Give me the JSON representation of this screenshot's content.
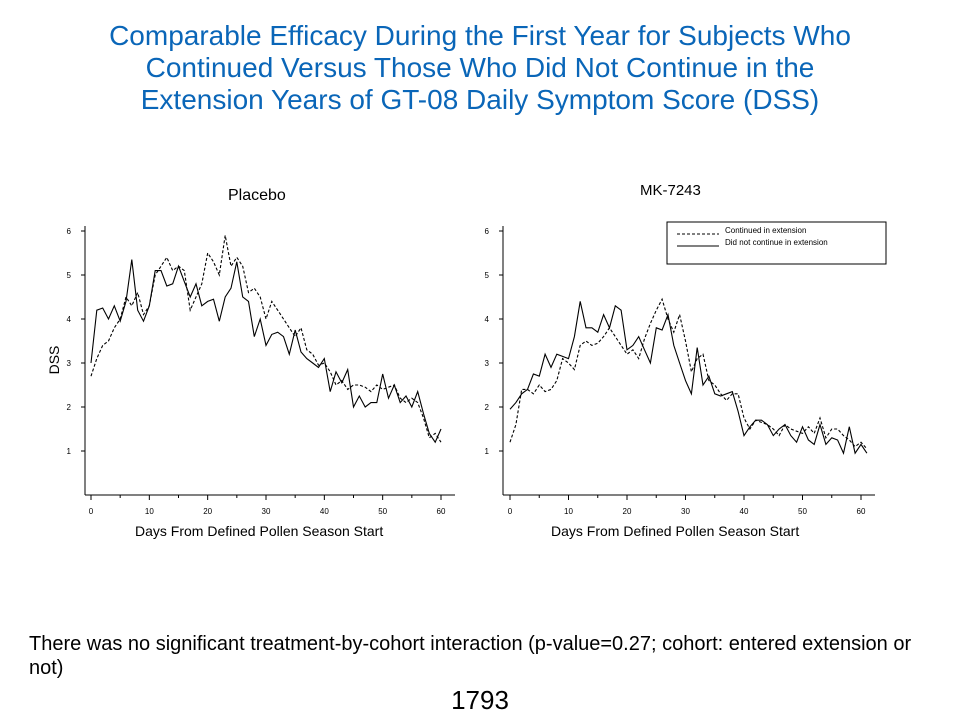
{
  "title_lines": [
    "Comparable Efficacy During the First Year for Subjects Who",
    "Continued Versus Those Who Did Not Continue in the",
    "Extension Years of GT-08 Daily Symptom Score (DSS)"
  ],
  "footnote": "There was no significant treatment-by-cohort interaction (p-value=0.27; cohort: entered extension or not)",
  "page_number": "1793",
  "colors": {
    "title": "#0a66b8",
    "lines": "#000000"
  },
  "chart_data": [
    {
      "type": "line",
      "title": "Placebo",
      "xlabel": "Days From Defined Pollen Season Start",
      "ylabel": "DSS",
      "xlim": [
        0,
        62
      ],
      "ylim": [
        0,
        6.2
      ],
      "xticks": [
        0,
        10,
        20,
        30,
        40,
        50,
        60
      ],
      "yticks": [
        1,
        2,
        3,
        4,
        5,
        6
      ],
      "series": [
        {
          "style": "solid",
          "values": [
            3.0,
            4.2,
            4.25,
            4.0,
            4.3,
            3.95,
            4.4,
            5.35,
            4.2,
            3.95,
            4.3,
            5.1,
            5.1,
            4.75,
            4.8,
            5.2,
            4.85,
            4.5,
            4.8,
            4.3,
            4.4,
            4.45,
            3.95,
            4.5,
            4.7,
            5.3,
            4.5,
            4.4,
            3.6,
            4.0,
            3.4,
            3.65,
            3.7,
            3.6,
            3.2,
            3.75,
            3.25,
            3.1,
            3.0,
            2.9,
            3.1,
            2.35,
            2.8,
            2.55,
            2.85,
            2.0,
            2.25,
            2.0,
            2.1,
            2.1,
            2.75,
            2.2,
            2.5,
            2.1,
            2.25,
            2.0,
            2.35,
            1.85,
            1.4,
            1.2,
            1.5
          ]
        },
        {
          "style": "dashed",
          "values": [
            2.7,
            3.1,
            3.4,
            3.5,
            3.8,
            4.0,
            4.5,
            4.3,
            4.6,
            4.1,
            4.3,
            5.0,
            5.2,
            5.4,
            5.1,
            5.2,
            5.1,
            4.2,
            4.5,
            4.8,
            5.5,
            5.3,
            5.0,
            5.9,
            5.2,
            5.4,
            5.2,
            4.6,
            4.7,
            4.5,
            4.0,
            4.4,
            4.2,
            4.0,
            3.8,
            3.6,
            3.8,
            3.3,
            3.2,
            2.95,
            3.0,
            2.8,
            2.5,
            2.6,
            2.4,
            2.5,
            2.5,
            2.45,
            2.35,
            2.5,
            2.4,
            2.45,
            2.5,
            2.2,
            2.1,
            2.2,
            2.1,
            1.75,
            1.3,
            1.4,
            1.2
          ]
        }
      ]
    },
    {
      "type": "line",
      "title": "MK-7243",
      "xlabel": "Days From Defined Pollen Season Start",
      "xlim": [
        0,
        62
      ],
      "ylim": [
        0,
        6.2
      ],
      "xticks": [
        0,
        10,
        20,
        30,
        40,
        50,
        60
      ],
      "yticks": [
        1,
        2,
        3,
        4,
        5,
        6
      ],
      "legend": {
        "position": "top-right",
        "entries": [
          {
            "label": "Continued in extension",
            "style": "dashed"
          },
          {
            "label": "Did not continue in extension",
            "style": "solid"
          }
        ]
      },
      "series": [
        {
          "style": "solid",
          "values": [
            1.95,
            2.1,
            2.3,
            2.4,
            2.75,
            2.7,
            3.2,
            2.9,
            3.2,
            3.15,
            3.1,
            3.6,
            4.4,
            3.8,
            3.8,
            3.7,
            4.1,
            3.8,
            4.3,
            4.2,
            3.3,
            3.4,
            3.6,
            3.3,
            3.0,
            3.8,
            3.75,
            4.1,
            3.4,
            3.0,
            2.6,
            2.3,
            3.35,
            2.5,
            2.7,
            2.3,
            2.25,
            2.3,
            2.35,
            1.9,
            1.35,
            1.55,
            1.7,
            1.7,
            1.6,
            1.35,
            1.5,
            1.6,
            1.35,
            1.2,
            1.55,
            1.25,
            1.15,
            1.6,
            1.15,
            1.3,
            1.25,
            0.95,
            1.55,
            0.95,
            1.15,
            0.95
          ]
        },
        {
          "style": "dashed",
          "values": [
            1.2,
            1.6,
            2.4,
            2.4,
            2.3,
            2.5,
            2.35,
            2.4,
            2.6,
            3.1,
            3.0,
            2.85,
            3.4,
            3.5,
            3.4,
            3.45,
            3.6,
            3.8,
            3.6,
            3.4,
            3.2,
            3.3,
            3.1,
            3.55,
            3.9,
            4.2,
            4.45,
            4.0,
            3.7,
            4.1,
            3.5,
            2.8,
            3.1,
            3.2,
            2.6,
            2.5,
            2.3,
            2.15,
            2.3,
            2.3,
            1.75,
            1.5,
            1.7,
            1.65,
            1.6,
            1.5,
            1.35,
            1.6,
            1.5,
            1.45,
            1.4,
            1.55,
            1.4,
            1.75,
            1.3,
            1.5,
            1.5,
            1.35,
            1.25,
            1.1,
            1.2,
            1.05
          ]
        }
      ]
    }
  ]
}
